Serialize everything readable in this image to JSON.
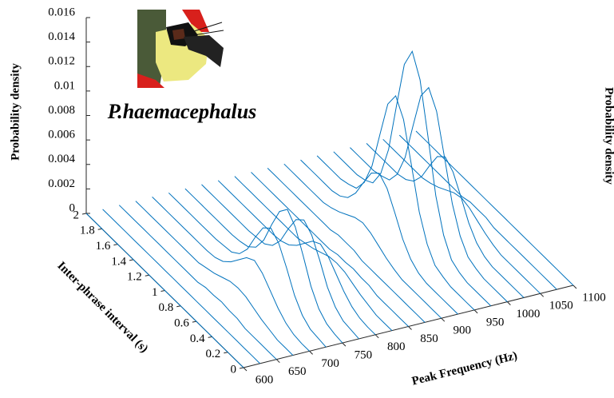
{
  "chart_data": {
    "type": "waterfall3d",
    "annotation": "P.haemacephalus",
    "xlabel": "Peak Frequency (Hz)",
    "ylabel": "Inter-phrase interval (s)",
    "zlabel": "Probability density",
    "clipped_label": "Probability density",
    "color": "#0072bd",
    "xlim": [
      600,
      1100
    ],
    "ylim": [
      0,
      2
    ],
    "zlim": [
      0,
      0.016
    ],
    "xticks": [
      600,
      650,
      700,
      750,
      800,
      850,
      900,
      950,
      1000,
      1050,
      1100
    ],
    "yticks": [
      0,
      0.2,
      0.4,
      0.6,
      0.8,
      1,
      1.2,
      1.4,
      1.6,
      1.8,
      2
    ],
    "zticks": [
      0,
      0.002,
      0.004,
      0.006,
      0.008,
      0.01,
      0.012,
      0.014,
      0.016
    ],
    "x": [
      600,
      625,
      650,
      675,
      700,
      725,
      750,
      775,
      800,
      825,
      850,
      875,
      900,
      925,
      950,
      975,
      1000,
      1025,
      1050,
      1075,
      1100
    ],
    "y": [
      0,
      0.1,
      0.2,
      0.3,
      0.4,
      0.5,
      0.6,
      0.7,
      0.8,
      0.9,
      1,
      1.1,
      1.2,
      1.3,
      1.4,
      1.5,
      1.6,
      1.7,
      1.8,
      1.9,
      2
    ],
    "z": [
      [
        0,
        0,
        0,
        0,
        0,
        0,
        0,
        0,
        0,
        0,
        0,
        0,
        0,
        0,
        0,
        0,
        0,
        0,
        0,
        0,
        0
      ],
      [
        0,
        0,
        0,
        0,
        0,
        0,
        0,
        0,
        0,
        0,
        0,
        0,
        0,
        0,
        0,
        0,
        0,
        0,
        0,
        0,
        0
      ],
      [
        0,
        0,
        0,
        0,
        0,
        0.0002,
        0.0002,
        0.0003,
        0.0002,
        0.0002,
        0,
        0,
        0,
        0,
        0,
        0,
        0,
        0,
        0,
        0,
        0
      ],
      [
        0,
        0,
        0,
        0.0002,
        0.0004,
        0.0007,
        0.001,
        0.0011,
        0.001,
        0.0007,
        0.0004,
        0.0002,
        0,
        0,
        0,
        0,
        0,
        0,
        0,
        0,
        0
      ],
      [
        0,
        0,
        0.0001,
        0.0004,
        0.001,
        0.0018,
        0.0026,
        0.003,
        0.0026,
        0.0018,
        0.001,
        0.0004,
        0.0001,
        0,
        0,
        0,
        0,
        0,
        0,
        0,
        0
      ],
      [
        0,
        0.0001,
        0.0002,
        0.0007,
        0.0017,
        0.0033,
        0.0047,
        0.0053,
        0.0047,
        0.0033,
        0.0017,
        0.0007,
        0.0002,
        0.0001,
        0,
        0,
        0,
        0,
        0,
        0,
        0
      ],
      [
        0,
        0.0001,
        0.0003,
        0.0009,
        0.0021,
        0.004,
        0.0057,
        0.0065,
        0.0057,
        0.004,
        0.0021,
        0.0009,
        0.0003,
        0.0001,
        0,
        0,
        0,
        0,
        0,
        0,
        0
      ],
      [
        0,
        0.0001,
        0.0002,
        0.0007,
        0.0017,
        0.0033,
        0.0047,
        0.0053,
        0.0047,
        0.0033,
        0.0017,
        0.0007,
        0.0002,
        0.0001,
        0,
        0,
        0,
        0,
        0,
        0,
        0
      ],
      [
        0,
        0,
        0.0001,
        0.0004,
        0.001,
        0.0018,
        0.0026,
        0.003,
        0.0026,
        0.0018,
        0.001,
        0.0004,
        0.0001,
        0,
        0,
        0,
        0,
        0,
        0,
        0,
        0
      ],
      [
        0,
        0,
        0,
        0.0002,
        0.0004,
        0.0007,
        0.001,
        0.0011,
        0.001,
        0.0007,
        0.0004,
        0.0002,
        0,
        0,
        0,
        0,
        0,
        0,
        0,
        0,
        0
      ],
      [
        0,
        0,
        0,
        0,
        0,
        0.0002,
        0.0002,
        0.0003,
        0.0002,
        0.0002,
        0,
        0,
        0,
        0,
        0,
        0,
        0,
        0,
        0,
        0,
        0
      ],
      [
        0,
        0,
        0,
        0,
        0,
        0,
        0,
        0,
        0,
        0.0002,
        0.0002,
        0.0002,
        0,
        0,
        0,
        0,
        0,
        0,
        0,
        0,
        0
      ],
      [
        0,
        0,
        0,
        0,
        0,
        0,
        0.0002,
        0.0005,
        0.0009,
        0.0013,
        0.0015,
        0.0013,
        0.0009,
        0.0005,
        0.0002,
        0,
        0,
        0,
        0,
        0,
        0
      ],
      [
        0,
        0,
        0,
        0,
        0,
        0.0002,
        0.0007,
        0.0017,
        0.0032,
        0.0046,
        0.0052,
        0.0046,
        0.0032,
        0.0017,
        0.0007,
        0.0002,
        0,
        0,
        0,
        0,
        0
      ],
      [
        0,
        0,
        0,
        0,
        0.0002,
        0.0005,
        0.0016,
        0.0036,
        0.0068,
        0.0099,
        0.0112,
        0.0099,
        0.0068,
        0.0036,
        0.0016,
        0.0005,
        0.0002,
        0,
        0,
        0,
        0
      ],
      [
        0,
        0,
        0,
        0,
        0.0002,
        0.0006,
        0.002,
        0.0046,
        0.0088,
        0.0128,
        0.0145,
        0.0128,
        0.0088,
        0.0046,
        0.002,
        0.0006,
        0.0002,
        0,
        0,
        0,
        0
      ],
      [
        0,
        0,
        0,
        0,
        0.0002,
        0.0005,
        0.0016,
        0.0036,
        0.0068,
        0.0099,
        0.0112,
        0.0099,
        0.0068,
        0.0036,
        0.0016,
        0.0005,
        0.0002,
        0,
        0,
        0,
        0
      ],
      [
        0,
        0,
        0,
        0,
        0,
        0.0002,
        0.0007,
        0.0017,
        0.0032,
        0.0046,
        0.0052,
        0.0046,
        0.0032,
        0.0017,
        0.0007,
        0.0002,
        0,
        0,
        0,
        0,
        0
      ],
      [
        0,
        0,
        0,
        0,
        0,
        0,
        0.0002,
        0.0005,
        0.0009,
        0.0013,
        0.0015,
        0.0013,
        0.0009,
        0.0005,
        0.0002,
        0,
        0,
        0,
        0,
        0,
        0
      ],
      [
        0,
        0,
        0,
        0,
        0,
        0,
        0,
        0,
        0,
        0.0002,
        0.0002,
        0.0002,
        0,
        0,
        0,
        0,
        0,
        0,
        0,
        0,
        0
      ],
      [
        0,
        0,
        0,
        0,
        0,
        0,
        0,
        0,
        0,
        0,
        0,
        0,
        0,
        0,
        0,
        0,
        0,
        0,
        0,
        0,
        0
      ]
    ]
  }
}
